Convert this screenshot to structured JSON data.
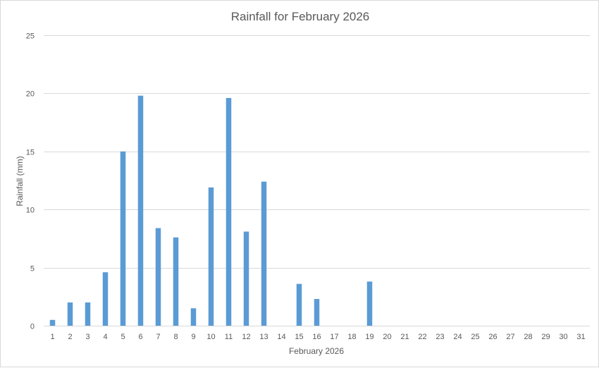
{
  "chart_data": {
    "type": "bar",
    "title": "Rainfall for February 2026",
    "xlabel": "February 2026",
    "ylabel": "Rainfall (mm)",
    "ylim": [
      0,
      25
    ],
    "yticks": [
      0,
      5,
      10,
      15,
      20,
      25
    ],
    "grid": true,
    "legend": "none",
    "color": "#5b9bd5",
    "categories": [
      "1",
      "2",
      "3",
      "4",
      "5",
      "6",
      "7",
      "8",
      "9",
      "10",
      "11",
      "12",
      "13",
      "14",
      "15",
      "16",
      "17",
      "18",
      "19",
      "20",
      "21",
      "22",
      "23",
      "24",
      "25",
      "26",
      "27",
      "28",
      "29",
      "30",
      "31"
    ],
    "values": [
      0.5,
      2.0,
      2.0,
      4.6,
      15.0,
      19.8,
      8.4,
      7.6,
      1.5,
      11.9,
      19.6,
      8.1,
      12.4,
      0,
      3.6,
      2.3,
      0,
      0,
      3.8,
      0,
      0,
      0,
      0,
      0,
      0,
      0,
      0,
      0,
      0,
      0,
      0
    ]
  }
}
